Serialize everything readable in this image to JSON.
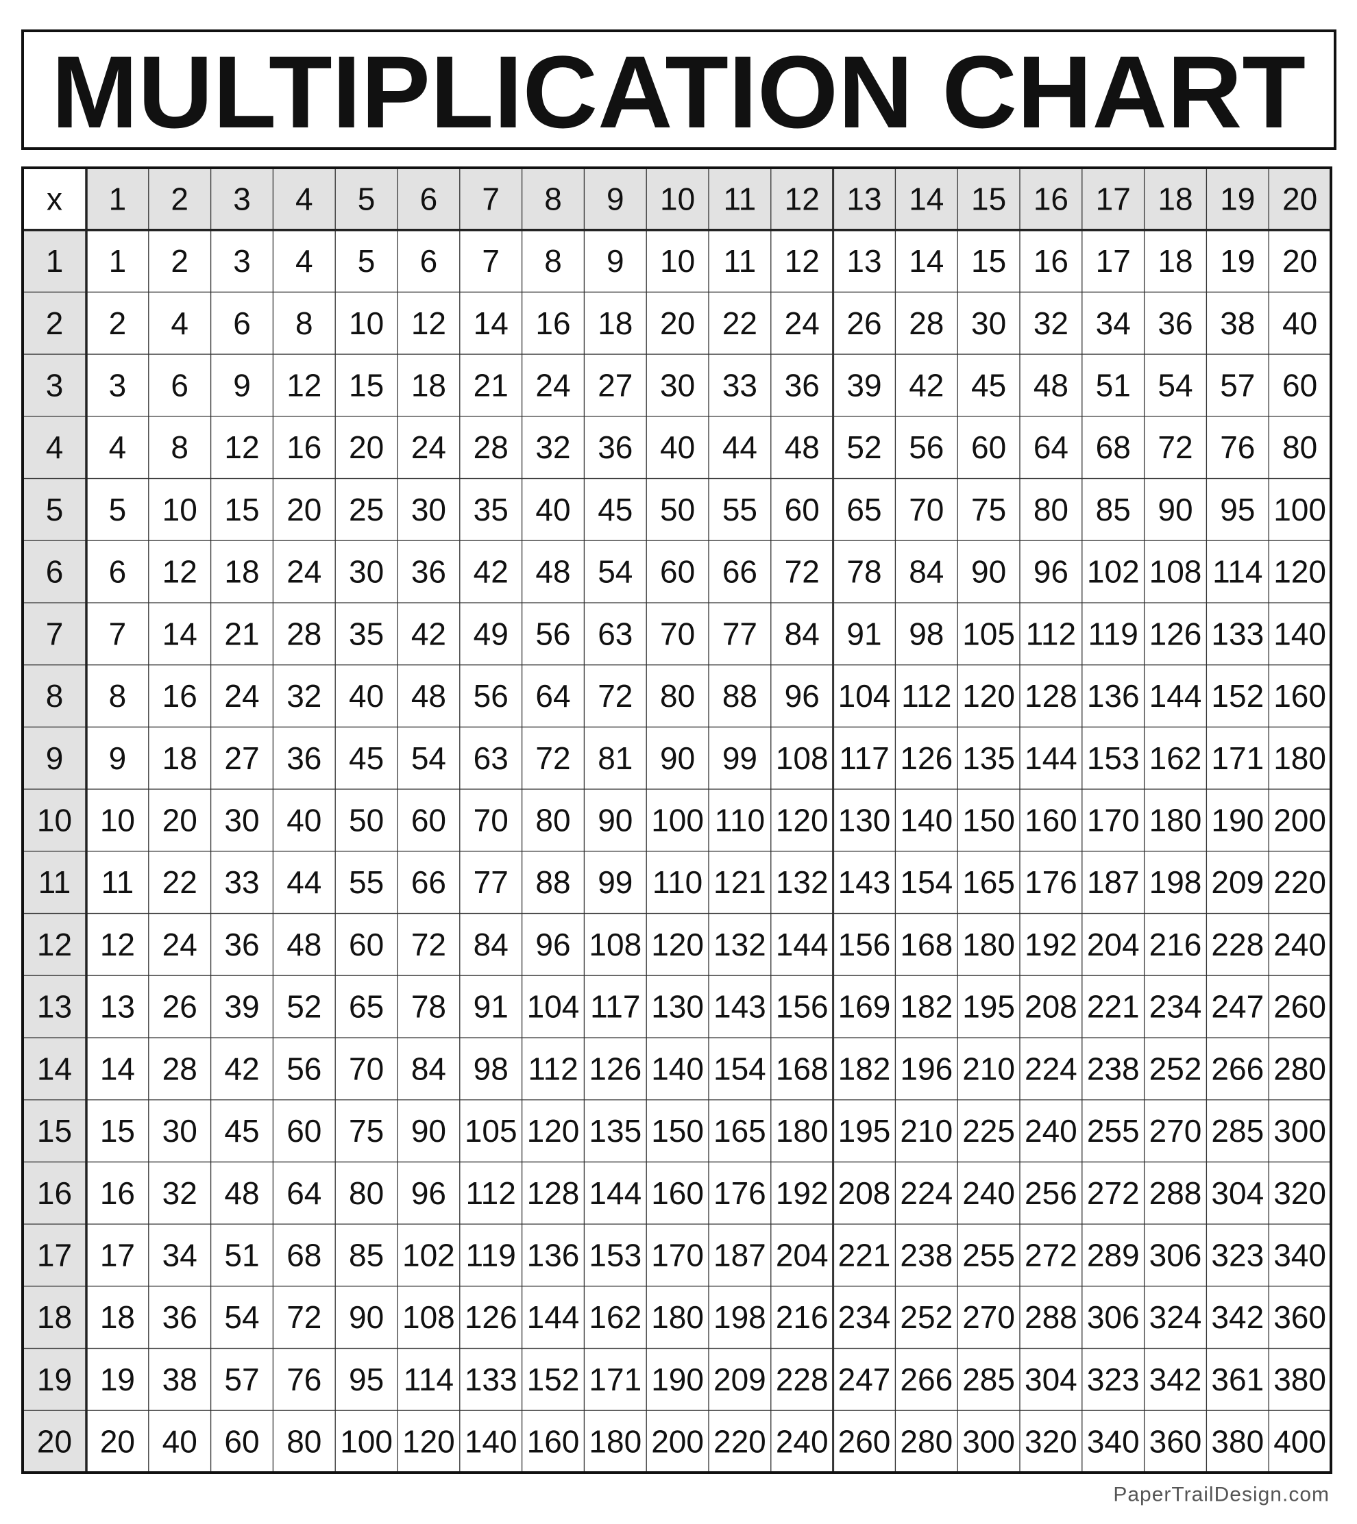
{
  "header": {
    "title": "MULTIPLICATION CHART"
  },
  "table": {
    "corner": "x",
    "columns": [
      1,
      2,
      3,
      4,
      5,
      6,
      7,
      8,
      9,
      10,
      11,
      12,
      13,
      14,
      15,
      16,
      17,
      18,
      19,
      20
    ],
    "rows": [
      {
        "label": 1,
        "values": [
          1,
          2,
          3,
          4,
          5,
          6,
          7,
          8,
          9,
          10,
          11,
          12,
          13,
          14,
          15,
          16,
          17,
          18,
          19,
          20
        ]
      },
      {
        "label": 2,
        "values": [
          2,
          4,
          6,
          8,
          10,
          12,
          14,
          16,
          18,
          20,
          22,
          24,
          26,
          28,
          30,
          32,
          34,
          36,
          38,
          40
        ]
      },
      {
        "label": 3,
        "values": [
          3,
          6,
          9,
          12,
          15,
          18,
          21,
          24,
          27,
          30,
          33,
          36,
          39,
          42,
          45,
          48,
          51,
          54,
          57,
          60
        ]
      },
      {
        "label": 4,
        "values": [
          4,
          8,
          12,
          16,
          20,
          24,
          28,
          32,
          36,
          40,
          44,
          48,
          52,
          56,
          60,
          64,
          68,
          72,
          76,
          80
        ]
      },
      {
        "label": 5,
        "values": [
          5,
          10,
          15,
          20,
          25,
          30,
          35,
          40,
          45,
          50,
          55,
          60,
          65,
          70,
          75,
          80,
          85,
          90,
          95,
          100
        ]
      },
      {
        "label": 6,
        "values": [
          6,
          12,
          18,
          24,
          30,
          36,
          42,
          48,
          54,
          60,
          66,
          72,
          78,
          84,
          90,
          96,
          102,
          108,
          114,
          120
        ]
      },
      {
        "label": 7,
        "values": [
          7,
          14,
          21,
          28,
          35,
          42,
          49,
          56,
          63,
          70,
          77,
          84,
          91,
          98,
          105,
          112,
          119,
          126,
          133,
          140
        ]
      },
      {
        "label": 8,
        "values": [
          8,
          16,
          24,
          32,
          40,
          48,
          56,
          64,
          72,
          80,
          88,
          96,
          104,
          112,
          120,
          128,
          136,
          144,
          152,
          160
        ]
      },
      {
        "label": 9,
        "values": [
          9,
          18,
          27,
          36,
          45,
          54,
          63,
          72,
          81,
          90,
          99,
          108,
          117,
          126,
          135,
          144,
          153,
          162,
          171,
          180
        ]
      },
      {
        "label": 10,
        "values": [
          10,
          20,
          30,
          40,
          50,
          60,
          70,
          80,
          90,
          100,
          110,
          120,
          130,
          140,
          150,
          160,
          170,
          180,
          190,
          200
        ]
      },
      {
        "label": 11,
        "values": [
          11,
          22,
          33,
          44,
          55,
          66,
          77,
          88,
          99,
          110,
          121,
          132,
          143,
          154,
          165,
          176,
          187,
          198,
          209,
          220
        ]
      },
      {
        "label": 12,
        "values": [
          12,
          24,
          36,
          48,
          60,
          72,
          84,
          96,
          108,
          120,
          132,
          144,
          156,
          168,
          180,
          192,
          204,
          216,
          228,
          240
        ]
      },
      {
        "label": 13,
        "values": [
          13,
          26,
          39,
          52,
          65,
          78,
          91,
          104,
          117,
          130,
          143,
          156,
          169,
          182,
          195,
          208,
          221,
          234,
          247,
          260
        ]
      },
      {
        "label": 14,
        "values": [
          14,
          28,
          42,
          56,
          70,
          84,
          98,
          112,
          126,
          140,
          154,
          168,
          182,
          196,
          210,
          224,
          238,
          252,
          266,
          280
        ]
      },
      {
        "label": 15,
        "values": [
          15,
          30,
          45,
          60,
          75,
          90,
          105,
          120,
          135,
          150,
          165,
          180,
          195,
          210,
          225,
          240,
          255,
          270,
          285,
          300
        ]
      },
      {
        "label": 16,
        "values": [
          16,
          32,
          48,
          64,
          80,
          96,
          112,
          128,
          144,
          160,
          176,
          192,
          208,
          224,
          240,
          256,
          272,
          288,
          304,
          320
        ]
      },
      {
        "label": 17,
        "values": [
          17,
          34,
          51,
          68,
          85,
          102,
          119,
          136,
          153,
          170,
          187,
          204,
          221,
          238,
          255,
          272,
          289,
          306,
          323,
          340
        ]
      },
      {
        "label": 18,
        "values": [
          18,
          36,
          54,
          72,
          90,
          108,
          126,
          144,
          162,
          180,
          198,
          216,
          234,
          252,
          270,
          288,
          306,
          324,
          342,
          360
        ]
      },
      {
        "label": 19,
        "values": [
          19,
          38,
          57,
          76,
          95,
          114,
          133,
          152,
          171,
          190,
          209,
          228,
          247,
          266,
          285,
          304,
          323,
          342,
          361,
          380
        ]
      },
      {
        "label": 20,
        "values": [
          20,
          40,
          60,
          80,
          100,
          120,
          140,
          160,
          180,
          200,
          220,
          240,
          260,
          280,
          300,
          320,
          340,
          360,
          380,
          400
        ]
      }
    ]
  },
  "footer": {
    "credit": "PaperTrailDesign.com"
  }
}
